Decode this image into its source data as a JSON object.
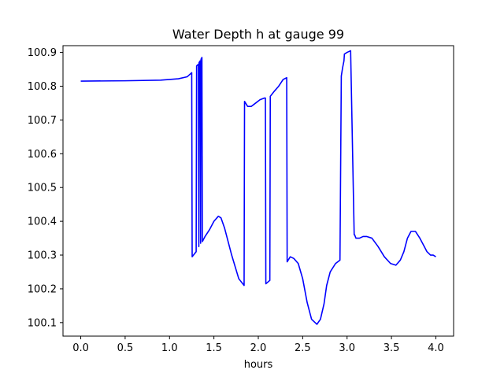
{
  "chart_data": {
    "type": "line",
    "title": "Water Depth h at gauge 99",
    "xlabel": "hours",
    "ylabel": "",
    "xlim": [
      -0.2,
      4.2
    ],
    "ylim": [
      100.06,
      100.92
    ],
    "x_ticks": [
      0.0,
      0.5,
      1.0,
      1.5,
      2.0,
      2.5,
      3.0,
      3.5,
      4.0
    ],
    "x_tick_labels": [
      "0.0",
      "0.5",
      "1.0",
      "1.5",
      "2.0",
      "2.5",
      "3.0",
      "3.5",
      "4.0"
    ],
    "y_ticks": [
      100.1,
      100.2,
      100.3,
      100.4,
      100.5,
      100.6,
      100.7,
      100.8,
      100.9
    ],
    "y_tick_labels": [
      "100.1",
      "100.2",
      "100.3",
      "100.4",
      "100.5",
      "100.6",
      "100.7",
      "100.8",
      "100.9"
    ],
    "grid": false,
    "series": [
      {
        "color": "#0000ff",
        "x": [
          0.0,
          0.5,
          0.9,
          1.1,
          1.2,
          1.25,
          1.255,
          1.3,
          1.305,
          1.325,
          1.33,
          1.333,
          1.345,
          1.35,
          1.355,
          1.365,
          1.37,
          1.4,
          1.45,
          1.5,
          1.55,
          1.58,
          1.62,
          1.7,
          1.78,
          1.84,
          1.845,
          1.88,
          1.92,
          1.97,
          2.02,
          2.07,
          2.08,
          2.085,
          2.13,
          2.135,
          2.18,
          2.23,
          2.28,
          2.32,
          2.325,
          2.36,
          2.4,
          2.45,
          2.5,
          2.55,
          2.6,
          2.66,
          2.7,
          2.74,
          2.77,
          2.81,
          2.87,
          2.92,
          2.935,
          2.95,
          2.965,
          2.97,
          3.0,
          3.04,
          3.08,
          3.085,
          3.1,
          3.14,
          3.18,
          3.22,
          3.28,
          3.35,
          3.42,
          3.49,
          3.55,
          3.6,
          3.64,
          3.68,
          3.72,
          3.77,
          3.82,
          3.86,
          3.9,
          3.94,
          3.97,
          4.0
        ],
        "values": [
          100.815,
          100.816,
          100.818,
          100.822,
          100.828,
          100.84,
          100.295,
          100.31,
          100.86,
          100.865,
          100.325,
          100.87,
          100.875,
          100.335,
          100.88,
          100.885,
          100.34,
          100.355,
          100.375,
          100.4,
          100.415,
          100.41,
          100.38,
          100.3,
          100.23,
          100.21,
          100.755,
          100.74,
          100.74,
          100.75,
          100.76,
          100.765,
          100.765,
          100.215,
          100.225,
          100.77,
          100.785,
          100.8,
          100.82,
          100.825,
          100.28,
          100.295,
          100.29,
          100.275,
          100.23,
          100.16,
          100.11,
          100.095,
          100.11,
          100.155,
          100.21,
          100.25,
          100.275,
          100.285,
          100.83,
          100.855,
          100.875,
          100.895,
          100.9,
          100.905,
          100.36,
          100.36,
          100.35,
          100.35,
          100.355,
          100.355,
          100.35,
          100.325,
          100.295,
          100.275,
          100.27,
          100.285,
          100.31,
          100.35,
          100.37,
          100.37,
          100.35,
          100.33,
          100.31,
          100.3,
          100.3,
          100.295
        ]
      }
    ]
  }
}
